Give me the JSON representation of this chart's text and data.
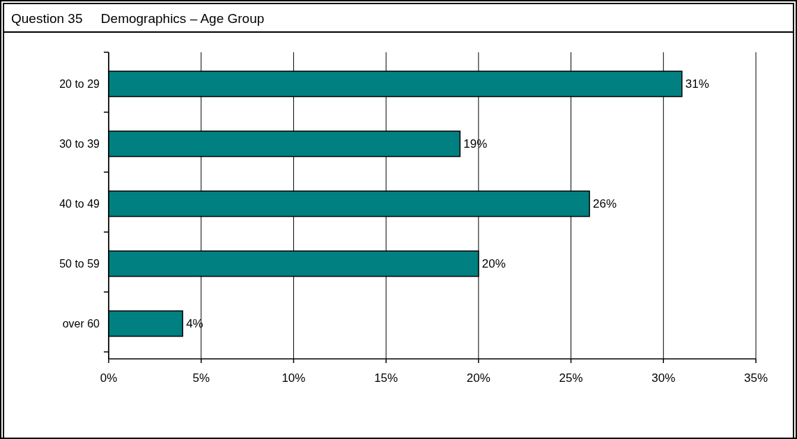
{
  "chart_data": {
    "type": "bar",
    "orientation": "horizontal",
    "title": "Question 35     Demographics – Age Group",
    "categories": [
      "20 to 29",
      "30 to 39",
      "40 to 49",
      "50 to 59",
      "over 60"
    ],
    "values": [
      31,
      19,
      26,
      20,
      4
    ],
    "value_labels": [
      "31%",
      "19%",
      "26%",
      "20%",
      "4%"
    ],
    "color": "#008080",
    "xlim": [
      0,
      35
    ],
    "xticks": [
      {
        "value": 0,
        "label": "0%"
      },
      {
        "value": 5,
        "label": "5%"
      },
      {
        "value": 10,
        "label": "10%"
      },
      {
        "value": 15,
        "label": "15%"
      },
      {
        "value": 20,
        "label": "20%"
      },
      {
        "value": 25,
        "label": "25%"
      },
      {
        "value": 30,
        "label": "30%"
      },
      {
        "value": 35,
        "label": "35%"
      }
    ],
    "grid": "x"
  }
}
